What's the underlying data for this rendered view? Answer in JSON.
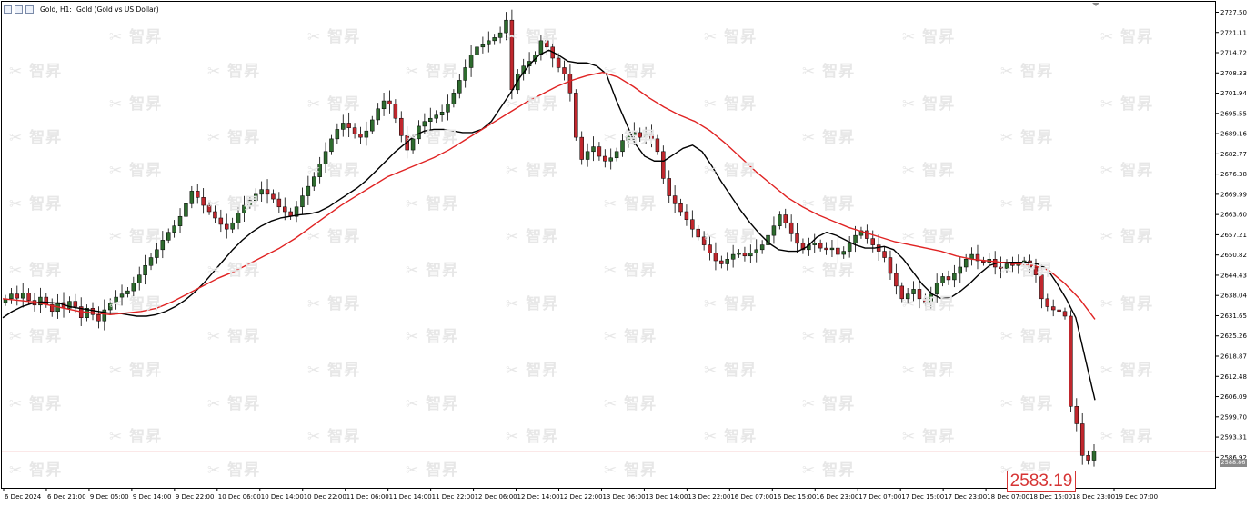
{
  "header": {
    "symbol_label": "Gold, H1:",
    "description": "Gold (Gold vs US Dollar)"
  },
  "watermark": {
    "text": "智昇"
  },
  "price_box": {
    "value": "2583.19",
    "color": "#d63434"
  },
  "current_price_tag": "2588.86",
  "colors": {
    "bull": "#2e6b2e",
    "bear": "#c0272d",
    "ma_fast": "#000000",
    "ma_slow": "#e02323",
    "price_line": "#e04a4a",
    "axis": "#000000"
  },
  "chart_data": {
    "type": "candlestick",
    "symbol": "Gold",
    "timeframe": "H1",
    "grid": false,
    "ylim": [
      2583.0,
      2728.5
    ],
    "y_ticks": [
      "2727.50",
      "2721.11",
      "2714.72",
      "2708.33",
      "2701.94",
      "2695.55",
      "2689.16",
      "2682.77",
      "2676.38",
      "2669.99",
      "2663.60",
      "2657.21",
      "2650.82",
      "2644.43",
      "2638.04",
      "2631.65",
      "2625.26",
      "2618.87",
      "2612.48",
      "2606.09",
      "2599.70",
      "2593.31",
      "2586.92"
    ],
    "x_ticks": [
      "6 Dec 2024",
      "6 Dec 21:00",
      "9 Dec 05:00",
      "9 Dec 14:00",
      "9 Dec 22:00",
      "10 Dec 06:00",
      "10 Dec 14:00",
      "10 Dec 22:00",
      "11 Dec 06:00",
      "11 Dec 14:00",
      "11 Dec 22:00",
      "12 Dec 06:00",
      "12 Dec 14:00",
      "12 Dec 22:00",
      "13 Dec 06:00",
      "13 Dec 14:00",
      "13 Dec 22:00",
      "16 Dec 07:00",
      "16 Dec 15:00",
      "16 Dec 23:00",
      "17 Dec 07:00",
      "17 Dec 15:00",
      "17 Dec 23:00",
      "18 Dec 07:00",
      "18 Dec 15:00",
      "18 Dec 23:00",
      "19 Dec 07:00"
    ],
    "horizontal_line": 2588.86,
    "series": [
      {
        "name": "",
        "kind": "ohlc",
        "note": "closing levels per bar; open=previous close",
        "closes": [
          2637.0,
          2638.5,
          2637.2,
          2638.8,
          2636.5,
          2635.0,
          2637.5,
          2635.2,
          2633.0,
          2635.8,
          2634.0,
          2636.2,
          2634.5,
          2631.0,
          2634.0,
          2632.0,
          2630.0,
          2633.5,
          2635.6,
          2637.5,
          2638.5,
          2639.5,
          2642.0,
          2644.5,
          2647.5,
          2650.0,
          2652.5,
          2655.5,
          2658.0,
          2660.0,
          2663.0,
          2667.0,
          2671.0,
          2669.0,
          2666.5,
          2664.5,
          2662.5,
          2660.5,
          2659.0,
          2661.0,
          2664.0,
          2666.5,
          2668.0,
          2670.0,
          2671.5,
          2670.0,
          2668.5,
          2666.0,
          2664.5,
          2663.0,
          2666.0,
          2669.5,
          2672.5,
          2675.5,
          2679.5,
          2683.5,
          2687.5,
          2690.5,
          2692.5,
          2691.0,
          2689.0,
          2688.0,
          2690.0,
          2693.5,
          2697.0,
          2699.5,
          2698.5,
          2694.0,
          2688.5,
          2684.0,
          2687.5,
          2691.5,
          2693.0,
          2694.0,
          2695.0,
          2696.0,
          2698.5,
          2702.0,
          2706.0,
          2710.0,
          2714.0,
          2716.5,
          2717.5,
          2718.5,
          2719.5,
          2721.0,
          2725.0,
          2703.0,
          2708.0,
          2710.5,
          2712.0,
          2714.0,
          2718.5,
          2716.5,
          2713.0,
          2710.0,
          2708.0,
          2702.0,
          2688.0,
          2681.0,
          2683.5,
          2685.0,
          2682.0,
          2680.5,
          2681.5,
          2683.5,
          2687.0,
          2688.5,
          2689.5,
          2688.0,
          2689.0,
          2687.5,
          2683.5,
          2675.0,
          2669.5,
          2667.0,
          2664.5,
          2662.0,
          2659.0,
          2656.5,
          2654.0,
          2651.5,
          2649.0,
          2648.0,
          2649.5,
          2651.0,
          2651.5,
          2650.5,
          2651.5,
          2652.5,
          2654.0,
          2657.0,
          2660.0,
          2663.5,
          2661.0,
          2657.5,
          2654.5,
          2652.5,
          2654.0,
          2654.5,
          2653.0,
          2652.5,
          2653.0,
          2651.0,
          2652.0,
          2654.5,
          2657.0,
          2658.5,
          2656.0,
          2654.0,
          2652.0,
          2650.0,
          2645.0,
          2641.0,
          2637.0,
          2638.5,
          2640.0,
          2637.0,
          2636.0,
          2638.5,
          2642.0,
          2644.0,
          2643.0,
          2645.0,
          2647.0,
          2649.5,
          2651.0,
          2649.0,
          2648.5,
          2649.5,
          2647.0,
          2646.5,
          2648.0,
          2647.5,
          2648.0,
          2649.0,
          2647.0,
          2644.5,
          2637.0,
          2634.5,
          2633.5,
          2633.0,
          2631.5,
          2603.0,
          2597.5,
          2587.5,
          2586.0,
          2588.8
        ]
      },
      {
        "name": "",
        "kind": "line",
        "role": "moving average (fast)",
        "values": [
          2631.0,
          2633.0,
          2634.5,
          2635.5,
          2636.0,
          2635.8,
          2635.5,
          2634.5,
          2634.0,
          2633.5,
          2633.0,
          2632.5,
          2632.5,
          2632.0,
          2631.5,
          2631.5,
          2632.0,
          2633.0,
          2634.5,
          2636.5,
          2639.0,
          2642.0,
          2645.5,
          2649.0,
          2652.5,
          2655.5,
          2658.0,
          2660.0,
          2661.5,
          2662.5,
          2663.0,
          2663.5,
          2663.8,
          2664.5,
          2666.0,
          2668.0,
          2670.0,
          2672.0,
          2674.5,
          2677.5,
          2680.5,
          2683.5,
          2686.0,
          2688.5,
          2690.0,
          2690.5,
          2690.5,
          2690.0,
          2689.5,
          2689.5,
          2690.5,
          2693.0,
          2697.5,
          2702.0,
          2707.0,
          2711.0,
          2714.0,
          2715.5,
          2714.0,
          2712.0,
          2711.5,
          2711.5,
          2710.5,
          2708.0,
          2700.0,
          2693.0,
          2686.0,
          2682.0,
          2680.5,
          2680.5,
          2682.5,
          2684.5,
          2685.5,
          2683.5,
          2679.0,
          2674.0,
          2669.5,
          2665.0,
          2661.0,
          2657.5,
          2654.5,
          2652.5,
          2652.0,
          2652.0,
          2653.5,
          2656.5,
          2658.0,
          2657.0,
          2655.5,
          2654.0,
          2653.0,
          2653.0,
          2653.5,
          2652.5,
          2649.5,
          2645.5,
          2641.5,
          2638.5,
          2637.0,
          2637.5,
          2639.5,
          2642.0,
          2645.0,
          2647.5,
          2648.5,
          2648.5,
          2648.5,
          2648.5,
          2648.0,
          2646.5,
          2642.0,
          2637.0,
          2631.0,
          2618.0,
          2605.0
        ]
      },
      {
        "name": "",
        "kind": "line",
        "role": "moving average (slow)",
        "values": [
          2637.0,
          2636.5,
          2636.0,
          2635.0,
          2634.0,
          2633.0,
          2632.5,
          2632.0,
          2632.5,
          2633.0,
          2634.0,
          2636.0,
          2638.5,
          2641.0,
          2643.5,
          2645.5,
          2648.0,
          2650.5,
          2653.0,
          2656.0,
          2659.5,
          2663.0,
          2666.5,
          2669.5,
          2672.5,
          2675.5,
          2677.5,
          2679.5,
          2681.5,
          2684.0,
          2687.0,
          2690.0,
          2693.0,
          2696.0,
          2699.0,
          2701.5,
          2704.0,
          2706.0,
          2707.5,
          2708.5,
          2707.0,
          2704.0,
          2700.5,
          2697.5,
          2695.0,
          2693.0,
          2690.0,
          2686.0,
          2681.5,
          2677.0,
          2673.0,
          2669.0,
          2666.0,
          2663.5,
          2661.5,
          2659.5,
          2658.0,
          2656.5,
          2655.0,
          2654.0,
          2653.0,
          2652.0,
          2650.5,
          2649.5,
          2649.0,
          2648.5,
          2648.0,
          2647.5,
          2646.0,
          2642.0,
          2637.0,
          2630.5
        ]
      }
    ]
  }
}
